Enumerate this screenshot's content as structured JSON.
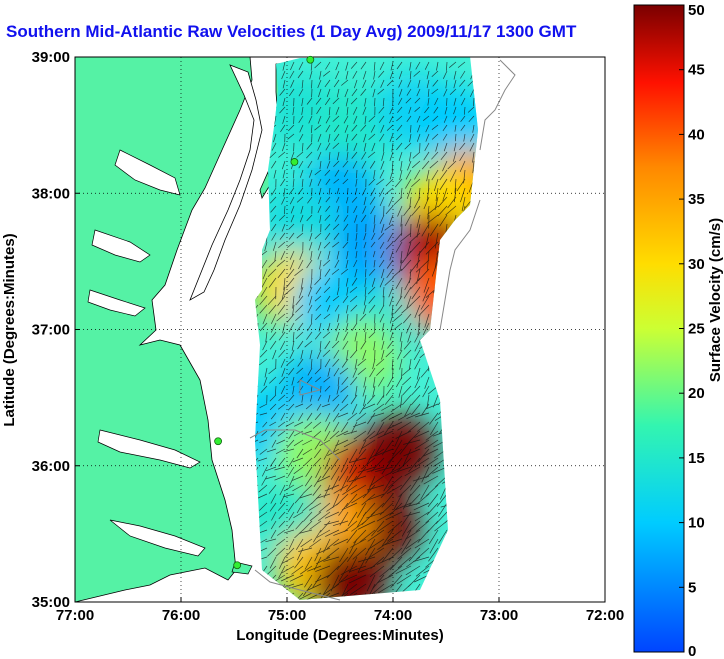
{
  "chart_data": {
    "type": "heatmap",
    "title": "Southern Mid-Atlantic Raw Velocities (1 Day Avg) 2009/11/17 1300 GMT",
    "xlabel": "Longitude (Degrees:Minutes)",
    "ylabel": "Latitude (Degrees:Minutes)",
    "xlim": [
      -77,
      -72
    ],
    "ylim": [
      35,
      39
    ],
    "x_ticks": [
      {
        "value": -77,
        "label": "77:00"
      },
      {
        "value": -76,
        "label": "76:00"
      },
      {
        "value": -75,
        "label": "75:00"
      },
      {
        "value": -74,
        "label": "74:00"
      },
      {
        "value": -73,
        "label": "73:00"
      },
      {
        "value": -72,
        "label": "72:00"
      }
    ],
    "y_ticks": [
      {
        "value": 35,
        "label": "35:00"
      },
      {
        "value": 36,
        "label": "36:00"
      },
      {
        "value": 37,
        "label": "37:00"
      },
      {
        "value": 38,
        "label": "38:00"
      },
      {
        "value": 39,
        "label": "39:00"
      }
    ],
    "grid": true,
    "colorbar": {
      "label": "Surface Velocity (cm/s)",
      "range": [
        0,
        50
      ],
      "ticks": [
        {
          "value": 0,
          "label": "0"
        },
        {
          "value": 5,
          "label": "5"
        },
        {
          "value": 10,
          "label": "10"
        },
        {
          "value": 15,
          "label": "15"
        },
        {
          "value": 20,
          "label": "20"
        },
        {
          "value": 25,
          "label": "25"
        },
        {
          "value": 30,
          "label": "30"
        },
        {
          "value": 35,
          "label": "35"
        },
        {
          "value": 40,
          "label": "40"
        },
        {
          "value": 45,
          "label": "45"
        },
        {
          "value": 50,
          "label": "50"
        }
      ]
    },
    "colors": {
      "land": "#55f2a5",
      "water_background": "#ffffff",
      "title": "#1111ee",
      "station": "#33ee33"
    },
    "stations": [
      {
        "lon": -74.78,
        "lat": 38.98
      },
      {
        "lon": -74.93,
        "lat": 38.23
      },
      {
        "lon": -75.65,
        "lat": 36.18
      },
      {
        "lon": -75.47,
        "lat": 35.27
      }
    ],
    "velocity_regions": [
      {
        "lon": -74.85,
        "lat": 38.6,
        "speed": 14
      },
      {
        "lon": -74.4,
        "lat": 38.5,
        "speed": 15
      },
      {
        "lon": -73.8,
        "lat": 38.6,
        "speed": 11
      },
      {
        "lon": -73.4,
        "lat": 38.5,
        "speed": 10
      },
      {
        "lon": -73.3,
        "lat": 38.05,
        "speed": 35
      },
      {
        "lon": -73.55,
        "lat": 37.9,
        "speed": 30
      },
      {
        "lon": -74.5,
        "lat": 38.0,
        "speed": 8
      },
      {
        "lon": -74.9,
        "lat": 37.8,
        "speed": 13
      },
      {
        "lon": -74.2,
        "lat": 37.6,
        "speed": 7
      },
      {
        "lon": -73.65,
        "lat": 37.58,
        "speed": 48
      },
      {
        "lon": -73.55,
        "lat": 37.25,
        "speed": 40
      },
      {
        "lon": -74.95,
        "lat": 37.3,
        "speed": 30
      },
      {
        "lon": -74.6,
        "lat": 37.2,
        "speed": 10
      },
      {
        "lon": -74.1,
        "lat": 37.0,
        "speed": 14
      },
      {
        "lon": -74.3,
        "lat": 36.8,
        "speed": 22
      },
      {
        "lon": -74.7,
        "lat": 36.55,
        "speed": 8
      },
      {
        "lon": -75.2,
        "lat": 36.3,
        "speed": 10
      },
      {
        "lon": -74.75,
        "lat": 36.1,
        "speed": 22
      },
      {
        "lon": -74.3,
        "lat": 35.95,
        "speed": 46
      },
      {
        "lon": -73.95,
        "lat": 36.1,
        "speed": 50
      },
      {
        "lon": -74.1,
        "lat": 35.55,
        "speed": 50
      },
      {
        "lon": -74.55,
        "lat": 35.55,
        "speed": 35
      },
      {
        "lon": -75.0,
        "lat": 35.6,
        "speed": 15
      },
      {
        "lon": -74.75,
        "lat": 35.25,
        "speed": 32
      },
      {
        "lon": -74.4,
        "lat": 35.15,
        "speed": 50
      }
    ]
  }
}
